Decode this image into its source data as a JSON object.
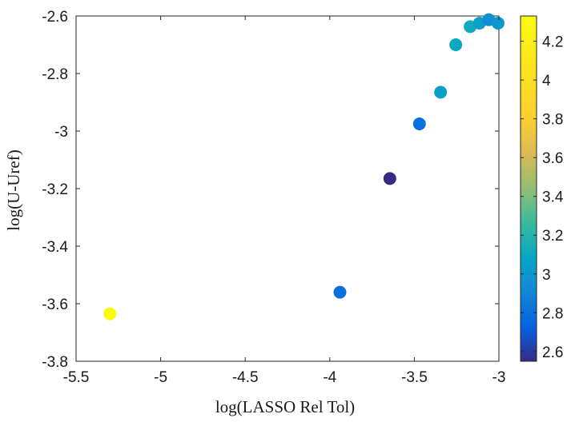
{
  "chart_data": {
    "type": "scatter",
    "title": "",
    "xlabel": "log(LASSO Rel Tol)",
    "ylabel": "log(U-Uref)",
    "xlim": [
      -5.5,
      -3.0
    ],
    "ylim": [
      -3.8,
      -2.6
    ],
    "xticks": [
      -5.5,
      -5,
      -4.5,
      -4,
      -3.5,
      -3
    ],
    "xtick_labels": [
      "-5.5",
      "-5",
      "-4.5",
      "-4",
      "-3.5",
      "-3"
    ],
    "yticks": [
      -3.8,
      -3.6,
      -3.4,
      -3.2,
      -3.0,
      -2.8,
      -2.6
    ],
    "ytick_labels": [
      "-3.8",
      "-3.6",
      "-3.4",
      "-3.2",
      "-3",
      "-2.8",
      "-2.6"
    ],
    "grid": false,
    "colorbar": {
      "colormap": "parula",
      "clim": [
        2.55,
        4.33
      ],
      "ticks": [
        2.6,
        2.8,
        3.0,
        3.2,
        3.4,
        3.6,
        3.8,
        4.0,
        4.2
      ],
      "tick_labels": [
        "2.6",
        "2.8",
        "3",
        "3.2",
        "3.4",
        "3.6",
        "3.8",
        "4",
        "4.2"
      ],
      "position": "right"
    },
    "points": [
      {
        "x": -5.3,
        "y": -3.635,
        "c": 4.33
      },
      {
        "x": -3.94,
        "y": -3.56,
        "c": 2.8
      },
      {
        "x": -3.645,
        "y": -3.165,
        "c": 2.55
      },
      {
        "x": -3.47,
        "y": -2.975,
        "c": 2.8
      },
      {
        "x": -3.345,
        "y": -2.865,
        "c": 3.05
      },
      {
        "x": -3.255,
        "y": -2.7,
        "c": 3.1
      },
      {
        "x": -3.17,
        "y": -2.637,
        "c": 3.12
      },
      {
        "x": -3.115,
        "y": -2.625,
        "c": 3.05
      },
      {
        "x": -3.06,
        "y": -2.613,
        "c": 2.95
      },
      {
        "x": -3.005,
        "y": -2.625,
        "c": 3.0
      }
    ]
  }
}
